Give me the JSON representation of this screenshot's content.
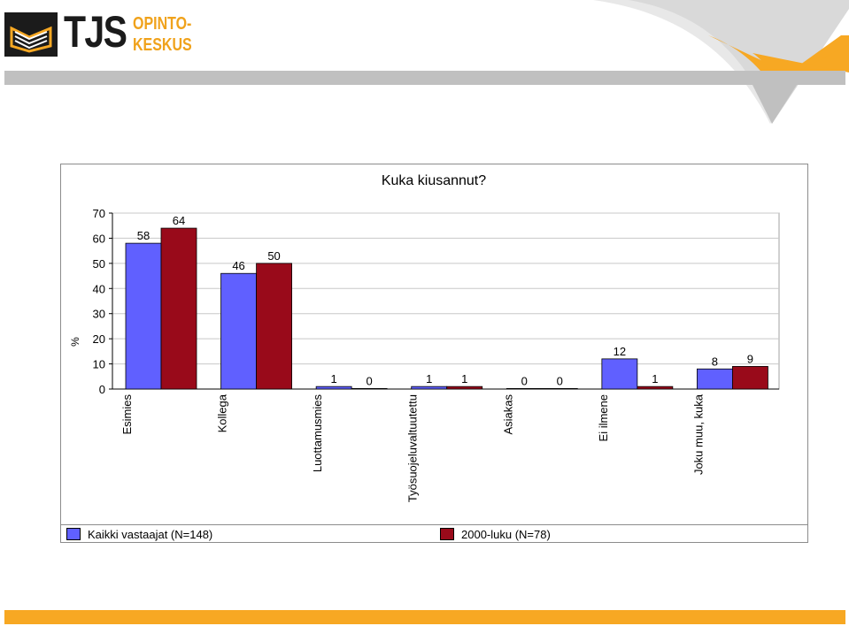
{
  "header": {
    "logo_main": "TJS",
    "logo_line1": "OPINTO-",
    "logo_line2": "KESKUS"
  },
  "colors": {
    "series1": "#6060ff",
    "series2": "#990a1a",
    "accent": "#f7a823",
    "gray": "#c0c0c0"
  },
  "chart_data": {
    "type": "bar",
    "title": "Kuka kiusannut?",
    "xlabel": "",
    "ylabel": "%",
    "ylim": [
      0,
      70
    ],
    "yticks": [
      "0",
      "10",
      "20",
      "30",
      "40",
      "50",
      "60",
      "70"
    ],
    "grid": true,
    "legend_position": "bottom",
    "categories": [
      "Esimies",
      "Kollega",
      "Luottamusmies",
      "Työsuojeluvaltuutettu",
      "Asiakas",
      "Ei ilmene",
      "Joku muu, kuka"
    ],
    "series": [
      {
        "name": "Kaikki vastaajat (N=148)",
        "values": [
          58,
          46,
          1,
          1,
          0,
          12,
          8
        ]
      },
      {
        "name": "2000-luku (N=78)",
        "values": [
          64,
          50,
          0,
          1,
          0,
          1,
          9
        ]
      }
    ]
  }
}
